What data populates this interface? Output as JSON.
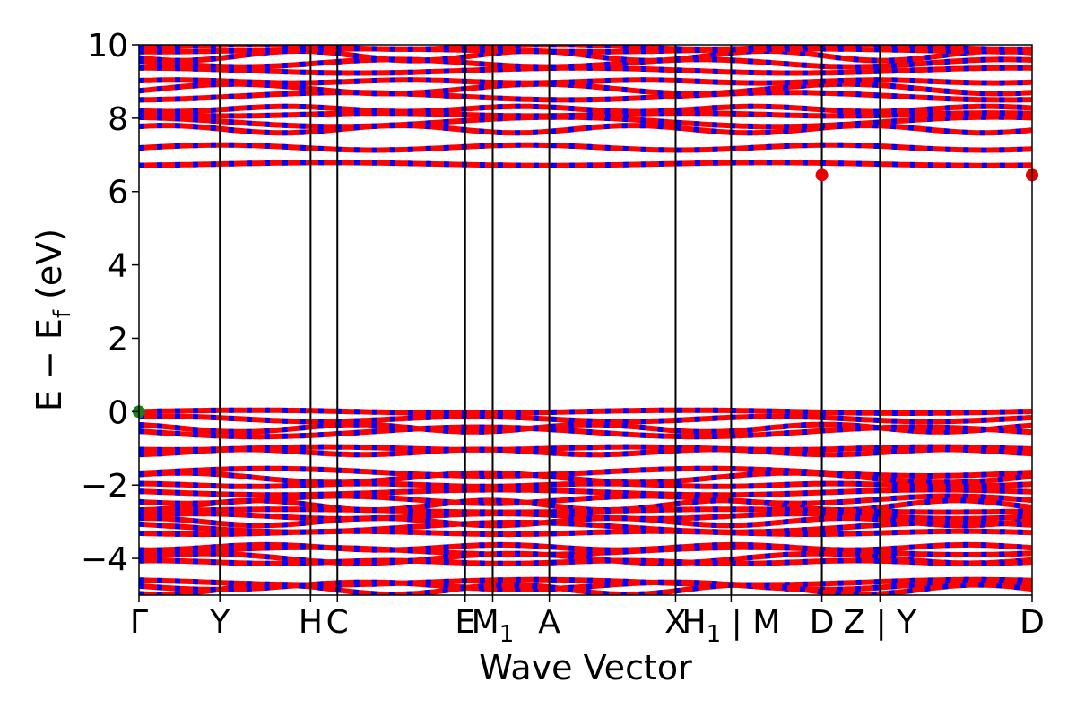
{
  "chart_data": {
    "type": "line",
    "title": "",
    "xlabel": "Wave Vector",
    "ylabel_parts": {
      "main": "E − E",
      "sub": "f",
      "unit": " (eV)"
    },
    "ylim": [
      -5,
      10
    ],
    "yticks": [
      {
        "value": 10,
        "label": "10"
      },
      {
        "value": 8,
        "label": "8"
      },
      {
        "value": 6,
        "label": "6"
      },
      {
        "value": 4,
        "label": "4"
      },
      {
        "value": 2,
        "label": "2"
      },
      {
        "value": 0,
        "label": "0"
      },
      {
        "value": -2,
        "label": "−2"
      },
      {
        "value": -4,
        "label": "−4"
      }
    ],
    "xlim": [
      0,
      16
    ],
    "kpoints": [
      {
        "pos": 0.0,
        "label": "Γ"
      },
      {
        "pos": 1.449,
        "label": "Y"
      },
      {
        "pos": 3.074,
        "label": "H"
      },
      {
        "pos": 3.554,
        "label": "C"
      },
      {
        "pos": 5.843,
        "label": "E"
      },
      {
        "pos": 6.337,
        "label": "M",
        "sub": "1"
      },
      {
        "pos": 7.351,
        "label": "A"
      },
      {
        "pos": 9.614,
        "label": "X"
      },
      {
        "pos": 10.609,
        "label": "H",
        "sub": "1",
        "suffix": " | M"
      },
      {
        "pos": 12.234,
        "label": "D"
      },
      {
        "pos": 13.275,
        "label": "Z | Y"
      },
      {
        "pos": 16.0,
        "label": "D"
      }
    ],
    "band_colors": {
      "primary": "#ff0000",
      "secondary": "#0000ff"
    },
    "markers": [
      {
        "name": "vbm",
        "x": 0.0,
        "y": 0.0,
        "color": "#1a7f1a"
      },
      {
        "name": "cbm-1",
        "x": 12.234,
        "y": 6.45,
        "color": "#e60000"
      },
      {
        "name": "cbm-2",
        "x": 16.0,
        "y": 6.45,
        "color": "#e60000"
      }
    ],
    "valence_levels": [
      0.0,
      -0.2,
      -0.45,
      -0.55,
      -1.0,
      -1.1,
      -1.65,
      -1.8,
      -2.0,
      -2.2,
      -2.4,
      -2.55,
      -2.7,
      -2.85,
      -3.0,
      -3.15,
      -3.3,
      -3.7,
      -3.8,
      -4.0,
      -4.1,
      -4.65,
      -4.75,
      -4.85
    ],
    "conduction_levels": [
      6.75,
      7.2,
      7.7,
      7.9,
      8.1,
      8.25,
      8.6,
      8.8,
      9.0,
      9.3,
      9.5,
      9.7,
      9.85,
      9.95
    ]
  }
}
